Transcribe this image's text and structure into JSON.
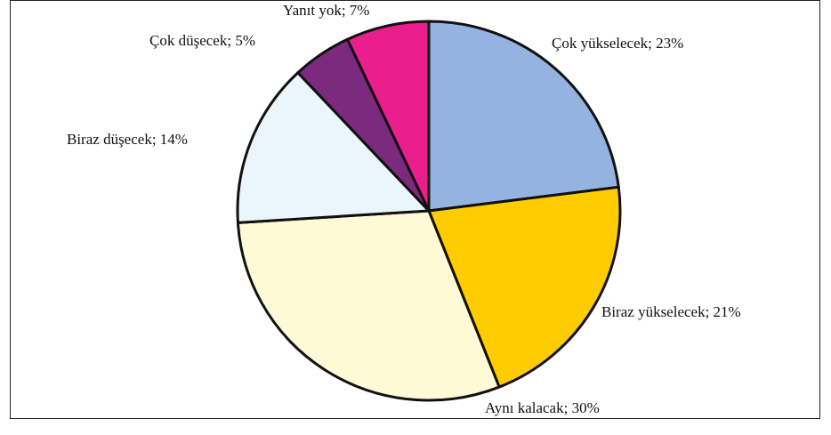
{
  "chart_data": {
    "type": "pie",
    "categories": [
      "Çok yükselecek; 23%",
      "Biraz yükselecek; 21%",
      "Aynı kalacak; 30%",
      "Biraz düşecek; 14%",
      "Çok düşecek; 5%",
      "Yanıt yok; 7%"
    ],
    "values": [
      23,
      21,
      30,
      14,
      5,
      7
    ],
    "colors": [
      "#95b3e0",
      "#ffcc00",
      "#fffad6",
      "#eaf5fc",
      "#7b2a7e",
      "#ea1e8c"
    ]
  }
}
